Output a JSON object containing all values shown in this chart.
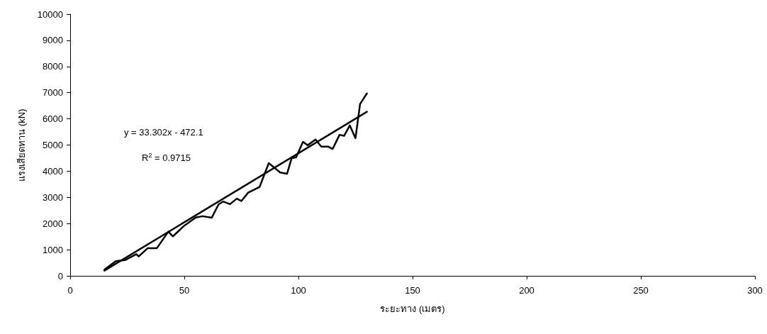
{
  "chart_data": {
    "type": "line",
    "xlabel": "ระยะทาง (เมตร)",
    "ylabel": "แรงเสียดทาน (kN)",
    "xlim": [
      0,
      300
    ],
    "xticks": [
      0,
      50,
      100,
      150,
      200,
      250,
      300
    ],
    "ylim": [
      0,
      10000
    ],
    "yticks": [
      0,
      1000,
      2000,
      3000,
      4000,
      5000,
      6000,
      7000,
      8000,
      9000,
      10000
    ],
    "grid": false,
    "marker": "none",
    "line_style": "solid",
    "series": [
      {
        "color": "#000000",
        "x": [
          15,
          20,
          24,
          29,
          30,
          34,
          38,
          43,
          45,
          50,
          55,
          58,
          62,
          65,
          67,
          70,
          73,
          75,
          78,
          83,
          87,
          92,
          95,
          97,
          99,
          102,
          104,
          107.5,
          110,
          113,
          115,
          118,
          120,
          122.5,
          125,
          127,
          130
        ],
        "values": [
          240,
          560,
          600,
          830,
          740,
          1060,
          1060,
          1690,
          1510,
          1920,
          2230,
          2280,
          2220,
          2730,
          2840,
          2740,
          2950,
          2860,
          3180,
          3400,
          4310,
          3950,
          3900,
          4490,
          4530,
          5120,
          4990,
          5210,
          4940,
          4940,
          4850,
          5390,
          5350,
          5750,
          5260,
          6570,
          6970
        ]
      },
      {
        "color": "#000000",
        "x": [
          15,
          130
        ],
        "values": [
          200,
          6270
        ]
      }
    ],
    "annotations": [
      "y = 33.302x - 472.1",
      "R$^{2}$ = 0.9715"
    ]
  }
}
